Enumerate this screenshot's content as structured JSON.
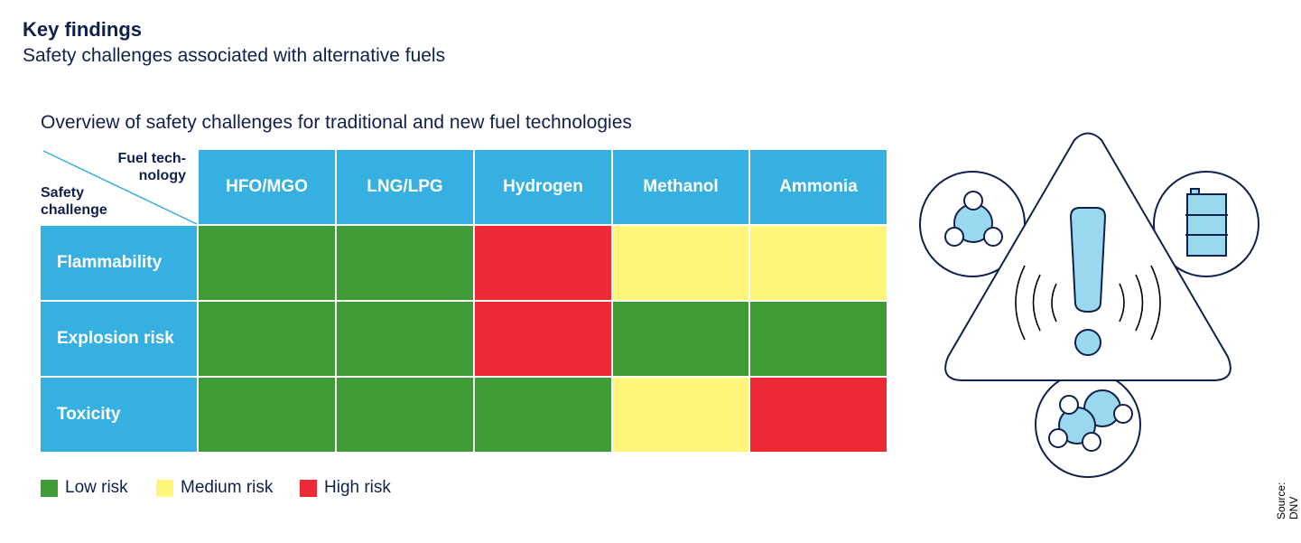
{
  "header": {
    "title": "Key findings",
    "subtitle": "Safety challenges associated with alternative fuels"
  },
  "chart_data": {
    "type": "heatmap",
    "title": "Overview of safety challenges for traditional and new fuel technologies",
    "column_axis_label": "Fuel tech-nology",
    "column_axis_label_lines": [
      "Fuel tech-",
      "nology"
    ],
    "row_axis_label_lines": [
      "Safety",
      "challenge"
    ],
    "columns": [
      "HFO/MGO",
      "LNG/LPG",
      "Hydrogen",
      "Methanol",
      "Ammonia"
    ],
    "rows": [
      "Flammability",
      "Explosion risk",
      "Toxicity"
    ],
    "values": [
      [
        "Low risk",
        "Low risk",
        "High risk",
        "Medium risk",
        "Medium risk"
      ],
      [
        "Low risk",
        "Low risk",
        "High risk",
        "Low risk",
        "Low risk"
      ],
      [
        "Low risk",
        "Low risk",
        "Low risk",
        "Medium risk",
        "High risk"
      ]
    ],
    "legend": [
      {
        "label": "Low risk",
        "color": "#3f9b35"
      },
      {
        "label": "Medium risk",
        "color": "#fff57a"
      },
      {
        "label": "High risk",
        "color": "#ee2a36"
      }
    ],
    "legend_placement": "bottom-left",
    "header_color": "#35b0e0"
  },
  "illustration": {
    "icons": [
      "warning-triangle-icon",
      "exclamation-icon",
      "molecule-icon",
      "oil-barrel-icon",
      "molecule-icon"
    ]
  },
  "source": "Source: DNV"
}
